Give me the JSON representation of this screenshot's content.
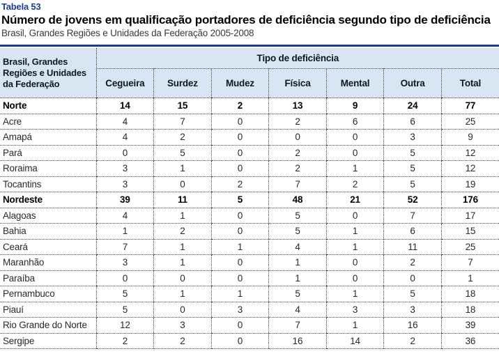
{
  "table_label": "Tabela 53",
  "title": "Número de jovens em qualificação portadores de deficiência segundo tipo de deficiência",
  "subtitle": "Brasil, Grandes Regiões e Unidades da Federação 2005-2008",
  "colors": {
    "accent_blue": "#1c3d96",
    "rule_navy": "#1e3c8c",
    "header_bg": "#d9e5f2"
  },
  "table": {
    "row_header": "Brasil, Grandes Regiões e Unidades da Federação",
    "group_header": "Tipo de deficiência",
    "columns": [
      "Cegueira",
      "Surdez",
      "Mudez",
      "Física",
      "Mental",
      "Outra",
      "Total"
    ],
    "rows": [
      {
        "label": "Norte",
        "bold": true,
        "values": [
          14,
          15,
          2,
          13,
          9,
          24,
          77
        ]
      },
      {
        "label": "Acre",
        "bold": false,
        "values": [
          4,
          7,
          0,
          2,
          6,
          6,
          25
        ]
      },
      {
        "label": "Amapá",
        "bold": false,
        "values": [
          4,
          2,
          0,
          0,
          0,
          3,
          9
        ]
      },
      {
        "label": "Pará",
        "bold": false,
        "values": [
          0,
          5,
          0,
          2,
          0,
          5,
          12
        ]
      },
      {
        "label": "Roraima",
        "bold": false,
        "values": [
          3,
          1,
          0,
          2,
          1,
          5,
          12
        ]
      },
      {
        "label": "Tocantins",
        "bold": false,
        "values": [
          3,
          0,
          2,
          7,
          2,
          5,
          19
        ]
      },
      {
        "label": "Nordeste",
        "bold": true,
        "values": [
          39,
          11,
          5,
          48,
          21,
          52,
          176
        ]
      },
      {
        "label": "Alagoas",
        "bold": false,
        "values": [
          4,
          1,
          0,
          5,
          0,
          7,
          17
        ]
      },
      {
        "label": "Bahia",
        "bold": false,
        "values": [
          1,
          2,
          0,
          5,
          1,
          6,
          15
        ]
      },
      {
        "label": "Ceará",
        "bold": false,
        "values": [
          7,
          1,
          1,
          4,
          1,
          11,
          25
        ]
      },
      {
        "label": "Maranhão",
        "bold": false,
        "values": [
          3,
          1,
          0,
          1,
          0,
          2,
          7
        ]
      },
      {
        "label": "Paraíba",
        "bold": false,
        "values": [
          0,
          0,
          0,
          1,
          0,
          0,
          1
        ]
      },
      {
        "label": "Pernambuco",
        "bold": false,
        "values": [
          5,
          1,
          1,
          5,
          1,
          5,
          18
        ]
      },
      {
        "label": "Piauí",
        "bold": false,
        "values": [
          5,
          0,
          3,
          4,
          3,
          3,
          18
        ]
      },
      {
        "label": "Rio Grande do Norte",
        "bold": false,
        "values": [
          12,
          3,
          0,
          7,
          1,
          16,
          39
        ]
      },
      {
        "label": "Sergipe",
        "bold": false,
        "values": [
          2,
          2,
          0,
          16,
          14,
          2,
          36
        ]
      }
    ]
  }
}
